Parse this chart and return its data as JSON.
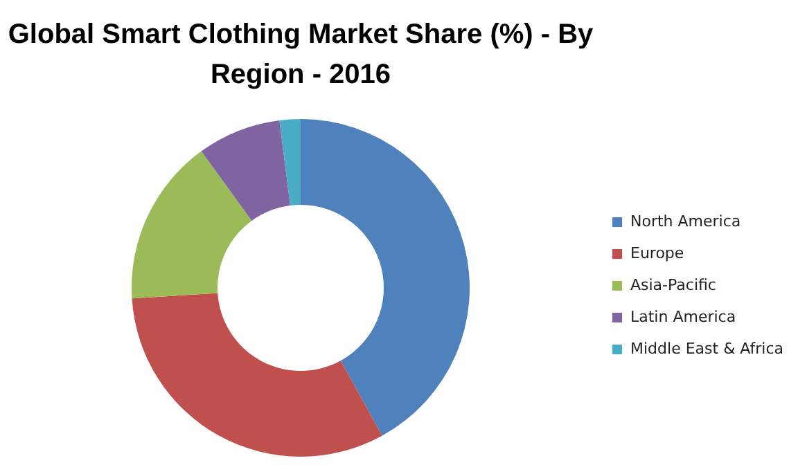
{
  "chart_data": {
    "type": "donut",
    "title": "Global Smart Clothing Market Share (%) - By Region - 2016",
    "categories": [
      "North America",
      "Europe",
      "Asia-Pacific",
      "Latin America",
      "Middle East & Africa"
    ],
    "values": [
      42,
      32,
      16,
      8,
      2
    ],
    "colors": [
      "#4f81bd",
      "#c0504d",
      "#9bbb59",
      "#8064a2",
      "#4bacc6"
    ],
    "legend": "right"
  }
}
